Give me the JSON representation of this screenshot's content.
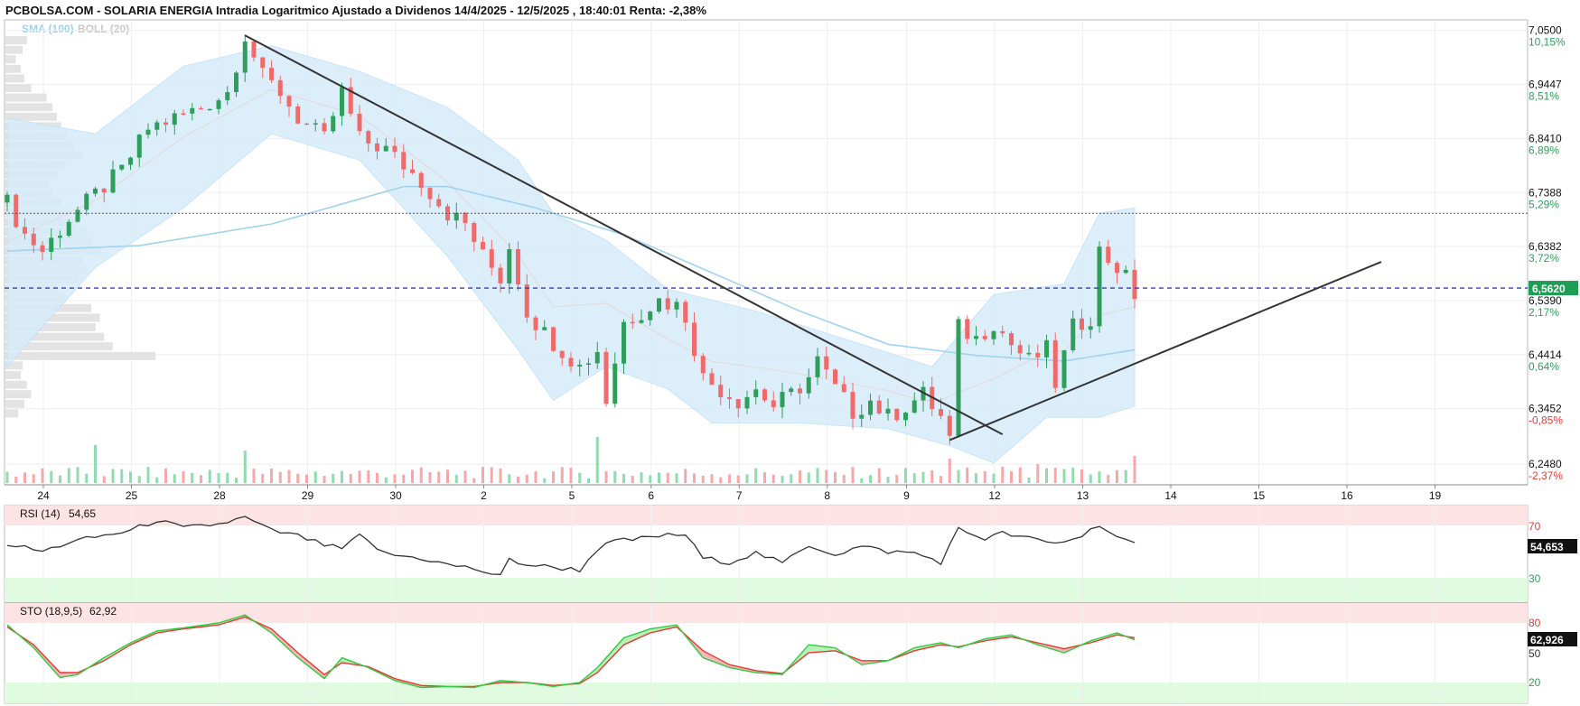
{
  "header": {
    "title": "PCBOLSA.COM - SOLARIA ENERGIA Intradia Logaritmico Ajustado a Dividenos 14/4/2025 - 12/5/2025 , 18:40:01 Renta: -2,38%",
    "legend_sma": "SMA (100)",
    "legend_boll": "BOLL (20)"
  },
  "colors": {
    "up": "#2e9e5b",
    "down": "#f06a6a",
    "sma": "#a8d8f0",
    "boll_fill": "#d6ecfa",
    "trendline": "#333333",
    "price_marker": "#1f9d55",
    "rsi_line": "#333333",
    "sto_k": "#2ecc40",
    "sto_d": "#e53935"
  },
  "price_axis": {
    "labels": [
      {
        "value": "7,0500",
        "pct": "10,15%",
        "pct_color": "#2e9e5b"
      },
      {
        "value": "6,9447",
        "pct": "8,51%",
        "pct_color": "#2e9e5b"
      },
      {
        "value": "6,8410",
        "pct": "6,89%",
        "pct_color": "#2e9e5b"
      },
      {
        "value": "6,7388",
        "pct": "5,29%",
        "pct_color": "#2e9e5b"
      },
      {
        "value": "6,6382",
        "pct": "3,72%",
        "pct_color": "#2e9e5b"
      },
      {
        "value": "6,5390",
        "pct": "2,17%",
        "pct_color": "#2e9e5b"
      },
      {
        "value": "6,4414",
        "pct": "0,64%",
        "pct_color": "#2e9e5b"
      },
      {
        "value": "6,3452",
        "pct": "-0,85%",
        "pct_color": "#e53935"
      },
      {
        "value": "6,2480",
        "pct": "-2,37%",
        "pct_color": "#e53935"
      }
    ],
    "current_price": "6,5620"
  },
  "x_axis": {
    "labels": [
      "24",
      "25",
      "28",
      "29",
      "30",
      "2",
      "5",
      "6",
      "7",
      "8",
      "9",
      "12",
      "13",
      "14",
      "15",
      "16",
      "19"
    ]
  },
  "rsi": {
    "label": "RSI (14)",
    "value_text": "54,65",
    "current": "54,653",
    "level_high": "70",
    "level_low": "30",
    "level_mid": "50"
  },
  "sto": {
    "label": "STO (18,9,5)",
    "value_text": "62,92",
    "current": "62,926",
    "level_high": "80",
    "level_mid": "50",
    "level_low": "20"
  },
  "chart_data": {
    "type": "candlestick",
    "scale": "log",
    "ylim": [
      6.22,
      7.06
    ],
    "dates": [
      "24",
      "25",
      "28",
      "29",
      "30",
      "2",
      "5",
      "6",
      "7",
      "8",
      "9",
      "12",
      "13"
    ],
    "price_path": [
      [
        0,
        6.72
      ],
      [
        2,
        6.66
      ],
      [
        4,
        6.63
      ],
      [
        7,
        6.69
      ],
      [
        9,
        6.72
      ],
      [
        11,
        6.75
      ],
      [
        13,
        6.78
      ],
      [
        16,
        6.86
      ],
      [
        19,
        6.88
      ],
      [
        22,
        6.9
      ],
      [
        25,
        6.93
      ],
      [
        27,
        7.04
      ],
      [
        29,
        6.96
      ],
      [
        31,
        6.93
      ],
      [
        33,
        6.88
      ],
      [
        36,
        6.84
      ],
      [
        38,
        6.93
      ],
      [
        40,
        6.84
      ],
      [
        43,
        6.82
      ],
      [
        45,
        6.79
      ],
      [
        47,
        6.76
      ],
      [
        50,
        6.7
      ],
      [
        52,
        6.68
      ],
      [
        54,
        6.62
      ],
      [
        56,
        6.58
      ],
      [
        57,
        6.64
      ],
      [
        59,
        6.52
      ],
      [
        61,
        6.48
      ],
      [
        63,
        6.45
      ],
      [
        65,
        6.42
      ],
      [
        67,
        6.45
      ],
      [
        68,
        6.36
      ],
      [
        70,
        6.5
      ],
      [
        72,
        6.52
      ],
      [
        74,
        6.54
      ],
      [
        76,
        6.53
      ],
      [
        77,
        6.51
      ],
      [
        79,
        6.4
      ],
      [
        81,
        6.38
      ],
      [
        83,
        6.36
      ],
      [
        85,
        6.38
      ],
      [
        87,
        6.35
      ],
      [
        89,
        6.37
      ],
      [
        91,
        6.4
      ],
      [
        92,
        6.43
      ],
      [
        94,
        6.38
      ],
      [
        96,
        6.34
      ],
      [
        98,
        6.36
      ],
      [
        100,
        6.33
      ],
      [
        102,
        6.35
      ],
      [
        104,
        6.37
      ],
      [
        106,
        6.33
      ],
      [
        107,
        6.29
      ],
      [
        108,
        6.49
      ],
      [
        110,
        6.47
      ],
      [
        112,
        6.5
      ],
      [
        114,
        6.46
      ],
      [
        116,
        6.43
      ],
      [
        118,
        6.45
      ],
      [
        119,
        6.39
      ],
      [
        121,
        6.49
      ],
      [
        123,
        6.51
      ],
      [
        124,
        6.63
      ],
      [
        126,
        6.6
      ],
      [
        127,
        6.58
      ],
      [
        128,
        6.55
      ]
    ],
    "volume_peaks": [
      [
        10,
        0.7
      ],
      [
        27,
        0.6
      ],
      [
        67,
        0.85
      ],
      [
        107,
        0.45
      ],
      [
        113,
        0.3
      ],
      [
        117,
        0.35
      ],
      [
        128,
        0.5
      ]
    ],
    "sma_100": [
      [
        0,
        6.63
      ],
      [
        15,
        6.64
      ],
      [
        30,
        6.68
      ],
      [
        45,
        6.75
      ],
      [
        50,
        6.75
      ],
      [
        60,
        6.71
      ],
      [
        70,
        6.66
      ],
      [
        80,
        6.59
      ],
      [
        90,
        6.52
      ],
      [
        100,
        6.46
      ],
      [
        110,
        6.44
      ],
      [
        120,
        6.43
      ],
      [
        128,
        6.45
      ]
    ],
    "bollinger": {
      "upper": [
        [
          0,
          6.88
        ],
        [
          10,
          6.85
        ],
        [
          20,
          6.98
        ],
        [
          30,
          7.02
        ],
        [
          40,
          6.97
        ],
        [
          50,
          6.9
        ],
        [
          58,
          6.8
        ],
        [
          62,
          6.7
        ],
        [
          68,
          6.65
        ],
        [
          75,
          6.56
        ],
        [
          85,
          6.52
        ],
        [
          95,
          6.47
        ],
        [
          105,
          6.42
        ],
        [
          112,
          6.55
        ],
        [
          120,
          6.57
        ],
        [
          124,
          6.7
        ],
        [
          128,
          6.71
        ]
      ],
      "lower": [
        [
          0,
          6.42
        ],
        [
          10,
          6.6
        ],
        [
          20,
          6.71
        ],
        [
          30,
          6.85
        ],
        [
          40,
          6.8
        ],
        [
          50,
          6.62
        ],
        [
          58,
          6.45
        ],
        [
          62,
          6.36
        ],
        [
          68,
          6.42
        ],
        [
          75,
          6.38
        ],
        [
          80,
          6.32
        ],
        [
          90,
          6.32
        ],
        [
          100,
          6.31
        ],
        [
          107,
          6.28
        ],
        [
          112,
          6.25
        ],
        [
          118,
          6.33
        ],
        [
          124,
          6.33
        ],
        [
          128,
          6.35
        ]
      ]
    },
    "trendlines": [
      {
        "from": [
          27,
          7.04
        ],
        "to": [
          113,
          6.3
        ]
      },
      {
        "from": [
          107,
          6.29
        ],
        "to": [
          156,
          6.61
        ]
      }
    ],
    "reference_lines": [
      {
        "value": 6.7,
        "style": "dotted",
        "color": "#555555"
      },
      {
        "value": 6.562,
        "style": "dashed",
        "color": "#3b3bb0"
      }
    ],
    "rsi_series": [
      [
        0,
        56
      ],
      [
        4,
        50
      ],
      [
        7,
        57
      ],
      [
        10,
        61
      ],
      [
        14,
        66
      ],
      [
        17,
        74
      ],
      [
        20,
        68
      ],
      [
        24,
        71
      ],
      [
        27,
        76
      ],
      [
        30,
        66
      ],
      [
        33,
        62
      ],
      [
        36,
        55
      ],
      [
        38,
        52
      ],
      [
        40,
        62
      ],
      [
        43,
        48
      ],
      [
        47,
        45
      ],
      [
        50,
        40
      ],
      [
        53,
        37
      ],
      [
        56,
        31
      ],
      [
        57,
        44
      ],
      [
        59,
        40
      ],
      [
        62,
        38
      ],
      [
        65,
        36
      ],
      [
        67,
        52
      ],
      [
        69,
        58
      ],
      [
        71,
        59
      ],
      [
        74,
        62
      ],
      [
        77,
        63
      ],
      [
        79,
        45
      ],
      [
        82,
        42
      ],
      [
        85,
        49
      ],
      [
        88,
        41
      ],
      [
        91,
        55
      ],
      [
        94,
        48
      ],
      [
        97,
        54
      ],
      [
        100,
        50
      ],
      [
        103,
        49
      ],
      [
        106,
        42
      ],
      [
        108,
        67
      ],
      [
        111,
        60
      ],
      [
        113,
        64
      ],
      [
        116,
        60
      ],
      [
        119,
        56
      ],
      [
        122,
        62
      ],
      [
        124,
        71
      ],
      [
        126,
        61
      ],
      [
        128,
        55
      ]
    ],
    "sto_k": [
      [
        0,
        78
      ],
      [
        3,
        55
      ],
      [
        6,
        25
      ],
      [
        8,
        28
      ],
      [
        11,
        45
      ],
      [
        14,
        60
      ],
      [
        17,
        72
      ],
      [
        20,
        75
      ],
      [
        24,
        80
      ],
      [
        27,
        88
      ],
      [
        30,
        70
      ],
      [
        33,
        45
      ],
      [
        36,
        24
      ],
      [
        38,
        45
      ],
      [
        41,
        35
      ],
      [
        44,
        22
      ],
      [
        47,
        15
      ],
      [
        50,
        16
      ],
      [
        53,
        15
      ],
      [
        56,
        22
      ],
      [
        59,
        20
      ],
      [
        62,
        16
      ],
      [
        65,
        20
      ],
      [
        67,
        35
      ],
      [
        70,
        65
      ],
      [
        73,
        74
      ],
      [
        76,
        78
      ],
      [
        79,
        45
      ],
      [
        82,
        35
      ],
      [
        85,
        30
      ],
      [
        88,
        28
      ],
      [
        91,
        58
      ],
      [
        94,
        55
      ],
      [
        97,
        38
      ],
      [
        100,
        42
      ],
      [
        103,
        55
      ],
      [
        106,
        60
      ],
      [
        108,
        55
      ],
      [
        111,
        64
      ],
      [
        114,
        68
      ],
      [
        117,
        58
      ],
      [
        120,
        50
      ],
      [
        123,
        62
      ],
      [
        126,
        70
      ],
      [
        128,
        63
      ]
    ],
    "sto_d": [
      [
        0,
        76
      ],
      [
        3,
        58
      ],
      [
        6,
        30
      ],
      [
        8,
        30
      ],
      [
        11,
        42
      ],
      [
        14,
        58
      ],
      [
        17,
        70
      ],
      [
        20,
        74
      ],
      [
        24,
        78
      ],
      [
        27,
        86
      ],
      [
        30,
        74
      ],
      [
        33,
        50
      ],
      [
        36,
        28
      ],
      [
        38,
        40
      ],
      [
        41,
        36
      ],
      [
        44,
        24
      ],
      [
        47,
        17
      ],
      [
        50,
        16
      ],
      [
        53,
        16
      ],
      [
        56,
        20
      ],
      [
        59,
        20
      ],
      [
        62,
        17
      ],
      [
        65,
        19
      ],
      [
        67,
        30
      ],
      [
        70,
        58
      ],
      [
        73,
        70
      ],
      [
        76,
        76
      ],
      [
        79,
        52
      ],
      [
        82,
        38
      ],
      [
        85,
        32
      ],
      [
        88,
        29
      ],
      [
        91,
        50
      ],
      [
        94,
        52
      ],
      [
        97,
        42
      ],
      [
        100,
        42
      ],
      [
        103,
        52
      ],
      [
        106,
        58
      ],
      [
        108,
        56
      ],
      [
        111,
        62
      ],
      [
        114,
        66
      ],
      [
        117,
        60
      ],
      [
        120,
        54
      ],
      [
        123,
        60
      ],
      [
        126,
        68
      ],
      [
        128,
        65
      ]
    ]
  }
}
